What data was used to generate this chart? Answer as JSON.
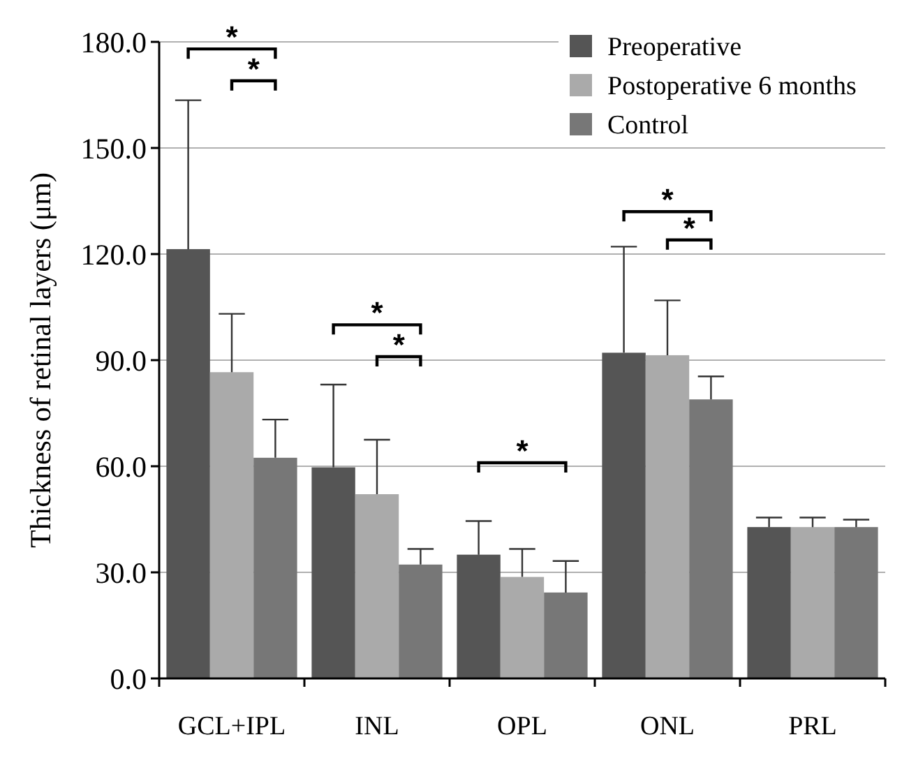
{
  "chart_data": {
    "type": "bar",
    "ylabel": "Thickness of retinal layers (μm)",
    "categories": [
      "GCL+IPL",
      "INL",
      "OPL",
      "ONL",
      "PRL"
    ],
    "series": [
      {
        "name": "Preoperative",
        "color": "#555555",
        "values": [
          121.4,
          59.7,
          35.0,
          92.1,
          42.8
        ],
        "errors": [
          [
            121.4,
            163.5
          ],
          [
            59.7,
            83.1
          ],
          [
            35.0,
            44.5
          ],
          [
            92.1,
            122.1
          ],
          [
            42.8,
            45.5
          ]
        ]
      },
      {
        "name": "Postoperative 6 months",
        "color": "#aaaaaa",
        "values": [
          86.6,
          52.1,
          28.7,
          91.4,
          42.8
        ],
        "errors": [
          [
            86.6,
            103.1
          ],
          [
            52.1,
            67.5
          ],
          [
            28.7,
            36.6
          ],
          [
            91.4,
            106.9
          ],
          [
            42.8,
            45.5
          ]
        ]
      },
      {
        "name": "Control",
        "color": "#777777",
        "values": [
          62.4,
          32.2,
          24.3,
          78.9,
          42.8
        ],
        "errors": [
          [
            62.4,
            73.2
          ],
          [
            32.2,
            36.6
          ],
          [
            24.3,
            33.2
          ],
          [
            78.9,
            85.4
          ],
          [
            42.8,
            44.9
          ]
        ]
      }
    ],
    "ylim": [
      0,
      180
    ],
    "yticks": [
      {
        "value": 0,
        "label": "0.0"
      },
      {
        "value": 30,
        "label": "30.0"
      },
      {
        "value": 60,
        "label": "60.0"
      },
      {
        "value": 90,
        "label": "90.0"
      },
      {
        "value": 120,
        "label": "120.0"
      },
      {
        "value": 150,
        "label": "150.0"
      },
      {
        "value": 180,
        "label": "180.0"
      }
    ],
    "grid": "y",
    "legend": "top right",
    "annotations": [
      "*",
      "*",
      "*",
      "*",
      "*",
      "*",
      "*"
    ]
  }
}
